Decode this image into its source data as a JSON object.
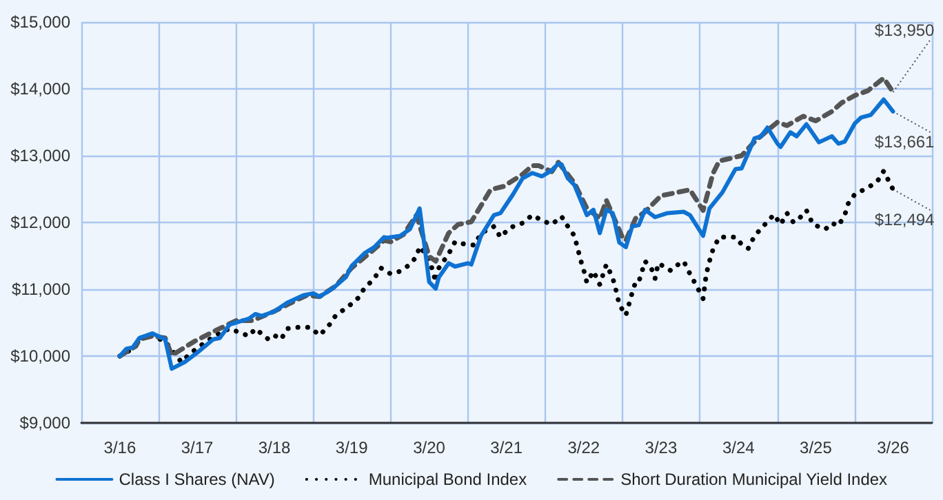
{
  "chart_data": {
    "type": "line",
    "marker": "none",
    "grid": true,
    "legend": "bottom",
    "xlim": [
      "2015-09",
      "2026-09"
    ],
    "xticks": [
      {
        "value": "2015-09",
        "label": null
      },
      {
        "value": "2016-03",
        "label": "3/16"
      },
      {
        "value": "2016-09",
        "label": null
      },
      {
        "value": "2017-03",
        "label": "3/17"
      },
      {
        "value": "2017-09",
        "label": null
      },
      {
        "value": "2018-03",
        "label": "3/18"
      },
      {
        "value": "2018-09",
        "label": null
      },
      {
        "value": "2019-03",
        "label": "3/19"
      },
      {
        "value": "2019-09",
        "label": null
      },
      {
        "value": "2020-03",
        "label": "3/20"
      },
      {
        "value": "2020-09",
        "label": null
      },
      {
        "value": "2021-03",
        "label": "3/21"
      },
      {
        "value": "2021-09",
        "label": null
      },
      {
        "value": "2022-03",
        "label": "3/22"
      },
      {
        "value": "2022-09",
        "label": null
      },
      {
        "value": "2023-03",
        "label": "3/23"
      },
      {
        "value": "2023-09",
        "label": null
      },
      {
        "value": "2024-03",
        "label": "3/24"
      },
      {
        "value": "2024-09",
        "label": null
      },
      {
        "value": "2025-03",
        "label": "3/25"
      },
      {
        "value": "2025-09",
        "label": null
      },
      {
        "value": "2026-03",
        "label": "3/26"
      },
      {
        "value": "2026-09",
        "label": null
      }
    ],
    "ylim": [
      9000,
      15000
    ],
    "yticks": [
      {
        "value": 9000,
        "label": "$9,000"
      },
      {
        "value": 10000,
        "label": "$10,000"
      },
      {
        "value": 11000,
        "label": "$11,000"
      },
      {
        "value": 12000,
        "label": "$12,000"
      },
      {
        "value": 13000,
        "label": "$13,000"
      },
      {
        "value": 14000,
        "label": "$14,000"
      },
      {
        "value": 15000,
        "label": "$15,000"
      }
    ],
    "series": [
      {
        "name": "Class I Shares (NAV)",
        "color": "#0f72d2",
        "line_style": "solid",
        "x": [
          "2016-03-01",
          "2016-04-01",
          "2016-05-01",
          "2016-06-01",
          "2016-08-01",
          "2016-10-01",
          "2016-11-01",
          "2017-01-01",
          "2017-03-01",
          "2017-05-16",
          "2017-06-16",
          "2017-08-01",
          "2017-11-01",
          "2017-12-01",
          "2018-01-01",
          "2018-03-01",
          "2018-05-01",
          "2018-07-16",
          "2018-09-01",
          "2018-10-01",
          "2018-12-01",
          "2019-02-01",
          "2019-03-01",
          "2019-05-01",
          "2019-06-16",
          "2019-08-01",
          "2019-08-16",
          "2019-10-16",
          "2019-12-01",
          "2020-01-16",
          "2020-03-01",
          "2020-04-01",
          "2020-04-16",
          "2020-06-01",
          "2020-07-01",
          "2020-09-01",
          "2020-09-16",
          "2020-11-01",
          "2021-01-01",
          "2021-02-01",
          "2021-04-01",
          "2021-05-16",
          "2021-07-01",
          "2021-08-16",
          "2021-10-01",
          "2021-11-01",
          "2021-11-16",
          "2021-12-16",
          "2022-01-16",
          "2022-03-16",
          "2022-04-16",
          "2022-05-16",
          "2022-06-16",
          "2022-07-16",
          "2022-08-16",
          "2022-09-16",
          "2022-10-16",
          "2022-11-16",
          "2022-12-16",
          "2023-02-01",
          "2023-04-01",
          "2023-06-16",
          "2023-07-16",
          "2023-09-16",
          "2023-10-16",
          "2023-12-16",
          "2024-02-16",
          "2024-03-16",
          "2024-05-16",
          "2024-06-16",
          "2024-07-16",
          "2024-09-01",
          "2024-09-16",
          "2024-11-01",
          "2024-12-01",
          "2025-01-16",
          "2025-03-16",
          "2025-05-16",
          "2025-06-16",
          "2025-07-16",
          "2025-09-01",
          "2025-10-01",
          "2025-11-16",
          "2026-01-16",
          "2026-03-01"
        ],
        "values": [
          10000,
          10110,
          10130,
          10270,
          10340,
          10250,
          9810,
          9910,
          10050,
          10250,
          10270,
          10470,
          10560,
          10630,
          10600,
          10670,
          10800,
          10910,
          10940,
          10890,
          11010,
          11180,
          11350,
          11540,
          11630,
          11780,
          11770,
          11800,
          11900,
          12210,
          11110,
          11010,
          11180,
          11390,
          11340,
          11390,
          11370,
          11800,
          12110,
          12140,
          12420,
          12660,
          12740,
          12690,
          12780,
          12880,
          12870,
          12660,
          12560,
          12110,
          12190,
          11840,
          12190,
          12140,
          11700,
          11630,
          11940,
          11960,
          12190,
          12080,
          12140,
          12160,
          12110,
          11800,
          12210,
          12450,
          12800,
          12810,
          13260,
          13290,
          13420,
          13180,
          13130,
          13350,
          13290,
          13470,
          13200,
          13290,
          13180,
          13210,
          13480,
          13570,
          13610,
          13840,
          13661
        ]
      },
      {
        "name": "Municipal Bond Index",
        "color": "#000000",
        "line_style": "dotted",
        "x": [
          "2016-03-01",
          "2016-05-01",
          "2016-06-01",
          "2016-08-01",
          "2016-10-01",
          "2016-12-16",
          "2017-02-01",
          "2017-04-01",
          "2017-06-01",
          "2017-08-01",
          "2017-11-01",
          "2017-12-01",
          "2018-02-01",
          "2018-03-01",
          "2018-04-01",
          "2018-05-01",
          "2018-06-16",
          "2018-08-16",
          "2018-10-01",
          "2018-11-16",
          "2018-12-16",
          "2019-02-16",
          "2019-04-01",
          "2019-05-01",
          "2019-06-16",
          "2019-07-16",
          "2019-09-01",
          "2019-10-16",
          "2019-12-01",
          "2020-01-01",
          "2020-01-16",
          "2020-03-01",
          "2020-04-01",
          "2020-04-16",
          "2020-06-01",
          "2020-07-01",
          "2020-07-16",
          "2020-10-01",
          "2020-11-01",
          "2021-01-01",
          "2021-02-01",
          "2021-03-16",
          "2021-05-16",
          "2021-07-01",
          "2021-08-16",
          "2021-10-01",
          "2021-11-01",
          "2021-11-16",
          "2021-12-16",
          "2022-01-16",
          "2022-02-16",
          "2022-03-01",
          "2022-03-16",
          "2022-04-16",
          "2022-05-16",
          "2022-06-01",
          "2022-06-16",
          "2022-07-16",
          "2022-08-01",
          "2022-08-16",
          "2022-09-16",
          "2022-10-01",
          "2022-10-16",
          "2022-11-01",
          "2022-11-16",
          "2022-12-16",
          "2023-01-16",
          "2023-02-01",
          "2023-02-16",
          "2023-04-16",
          "2023-05-16",
          "2023-06-16",
          "2023-07-16",
          "2023-08-16",
          "2023-09-16",
          "2023-10-01",
          "2023-10-16",
          "2023-11-01",
          "2023-12-01",
          "2024-01-01",
          "2024-02-16",
          "2024-03-16",
          "2024-04-16",
          "2024-05-16",
          "2024-07-01",
          "2024-08-16",
          "2024-09-16",
          "2024-10-16",
          "2024-11-16",
          "2024-12-16",
          "2025-01-16",
          "2025-02-16",
          "2025-04-16",
          "2025-05-16",
          "2025-06-16",
          "2025-07-16",
          "2025-08-01",
          "2025-09-01",
          "2025-11-01",
          "2025-12-16",
          "2026-01-16",
          "2026-03-01"
        ],
        "values": [
          10000,
          10110,
          10270,
          10300,
          10220,
          9910,
          10050,
          10190,
          10320,
          10410,
          10300,
          10410,
          10250,
          10310,
          10250,
          10410,
          10430,
          10430,
          10310,
          10470,
          10610,
          10750,
          10870,
          11020,
          11160,
          11320,
          11230,
          11270,
          11370,
          11490,
          11640,
          11460,
          11110,
          11320,
          11530,
          11710,
          11690,
          11660,
          11840,
          11940,
          11780,
          11920,
          11990,
          12110,
          12030,
          11970,
          12050,
          12090,
          11940,
          11800,
          11420,
          11290,
          11100,
          11270,
          11070,
          11230,
          11370,
          11170,
          10980,
          10770,
          10610,
          10780,
          10950,
          11110,
          11110,
          11420,
          11300,
          11160,
          11390,
          11280,
          11360,
          11420,
          11230,
          11050,
          10860,
          11230,
          11420,
          11590,
          11780,
          11780,
          11780,
          11670,
          11610,
          11800,
          11960,
          12120,
          11970,
          12140,
          12000,
          12070,
          12180,
          11970,
          11900,
          11990,
          11950,
          12110,
          12280,
          12420,
          12520,
          12610,
          12770,
          12494
        ]
      },
      {
        "name": "Short Duration Municipal Yield Index",
        "color": "#555555",
        "line_style": "dashed",
        "x": [
          "2016-03-01",
          "2016-05-16",
          "2016-06-01",
          "2016-08-01",
          "2016-10-01",
          "2016-11-01",
          "2017-02-16",
          "2017-06-01",
          "2017-09-01",
          "2017-11-16",
          "2018-03-01",
          "2018-05-01",
          "2018-08-01",
          "2018-10-01",
          "2018-12-16",
          "2019-03-01",
          "2019-06-01",
          "2019-08-01",
          "2019-09-01",
          "2019-11-01",
          "2020-01-01",
          "2020-03-01",
          "2020-04-01",
          "2020-06-01",
          "2020-07-16",
          "2020-09-16",
          "2020-12-16",
          "2021-02-16",
          "2021-05-16",
          "2021-07-01",
          "2021-08-01",
          "2021-10-01",
          "2021-11-01",
          "2022-01-16",
          "2022-03-16",
          "2022-05-16",
          "2022-06-16",
          "2022-09-01",
          "2022-09-16",
          "2022-11-01",
          "2022-12-16",
          "2023-03-01",
          "2023-05-16",
          "2023-07-16",
          "2023-09-16",
          "2023-11-01",
          "2023-12-01",
          "2024-03-16",
          "2024-05-16",
          "2024-08-01",
          "2024-09-01",
          "2024-10-16",
          "2025-01-01",
          "2025-03-01",
          "2025-05-16",
          "2025-07-01",
          "2025-09-01",
          "2025-11-01",
          "2026-01-16",
          "2026-03-01"
        ],
        "values": [
          10000,
          10150,
          10250,
          10300,
          10270,
          10010,
          10220,
          10390,
          10530,
          10530,
          10670,
          10770,
          10910,
          10890,
          11050,
          11320,
          11560,
          11730,
          11710,
          11820,
          12110,
          11490,
          11420,
          11840,
          11970,
          12010,
          12490,
          12540,
          12720,
          12850,
          12850,
          12760,
          12900,
          12590,
          12210,
          12060,
          12330,
          11770,
          11730,
          12060,
          12160,
          12400,
          12450,
          12490,
          12180,
          12730,
          12920,
          13000,
          13210,
          13420,
          13500,
          13450,
          13590,
          13520,
          13660,
          13790,
          13900,
          13970,
          14160,
          13950
        ]
      }
    ],
    "annotations": [
      {
        "text": "$13,950",
        "x": "2026-03-01",
        "y": 13950
      },
      {
        "text": "$13,661",
        "x": "2026-03-01",
        "y": 13661
      },
      {
        "text": "$12,494",
        "x": "2026-03-01",
        "y": 12494
      }
    ]
  }
}
